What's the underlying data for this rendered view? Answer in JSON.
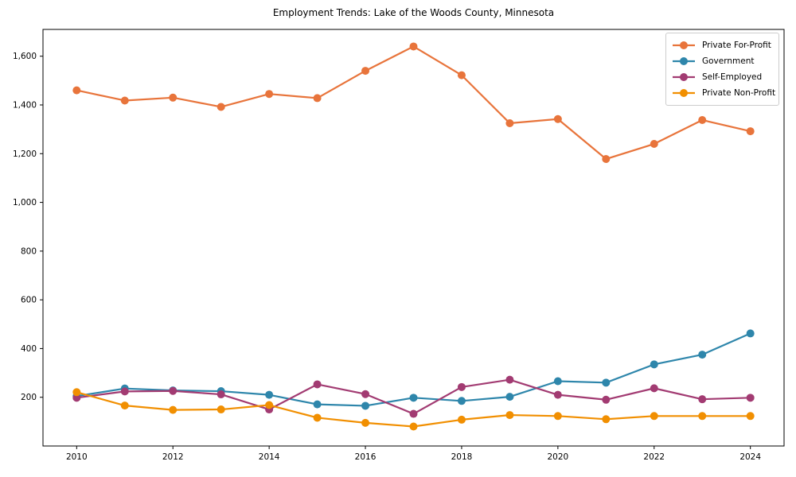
{
  "title": "Employment Trends: Lake of the Woods County, Minnesota",
  "chart_data": {
    "type": "line",
    "title": "Employment Trends: Lake of the Woods County, Minnesota",
    "xlabel": "",
    "ylabel": "",
    "x": [
      2010,
      2011,
      2012,
      2013,
      2014,
      2015,
      2016,
      2017,
      2018,
      2019,
      2020,
      2021,
      2022,
      2023,
      2024
    ],
    "series": [
      {
        "name": "Private For-Profit",
        "color": "#e8743b",
        "values": [
          1460,
          1418,
          1430,
          1392,
          1445,
          1428,
          1540,
          1640,
          1522,
          1325,
          1342,
          1178,
          1240,
          1338,
          1292
        ]
      },
      {
        "name": "Government",
        "color": "#2e86ab",
        "values": [
          205,
          236,
          228,
          225,
          210,
          171,
          165,
          198,
          185,
          202,
          266,
          260,
          335,
          375,
          462
        ]
      },
      {
        "name": "Self-Employed",
        "color": "#a23b72",
        "values": [
          198,
          224,
          226,
          212,
          150,
          253,
          213,
          132,
          242,
          272,
          210,
          190,
          237,
          192,
          198
        ]
      },
      {
        "name": "Private Non-Profit",
        "color": "#f18f01",
        "values": [
          221,
          166,
          148,
          150,
          168,
          116,
          95,
          80,
          108,
          127,
          123,
          110,
          123,
          123,
          123
        ]
      }
    ],
    "xticks": [
      2010,
      2012,
      2014,
      2016,
      2018,
      2020,
      2022,
      2024
    ],
    "yticks": [
      200,
      400,
      600,
      800,
      1000,
      1200,
      1400,
      1600
    ],
    "xlim": [
      2009.3,
      2024.7
    ],
    "ylim": [
      0,
      1710
    ],
    "grid": false,
    "legend_position": "upper right",
    "legend_labels": [
      "Private For-Profit",
      "Government",
      "Self-Employed",
      "Private Non-Profit"
    ]
  }
}
